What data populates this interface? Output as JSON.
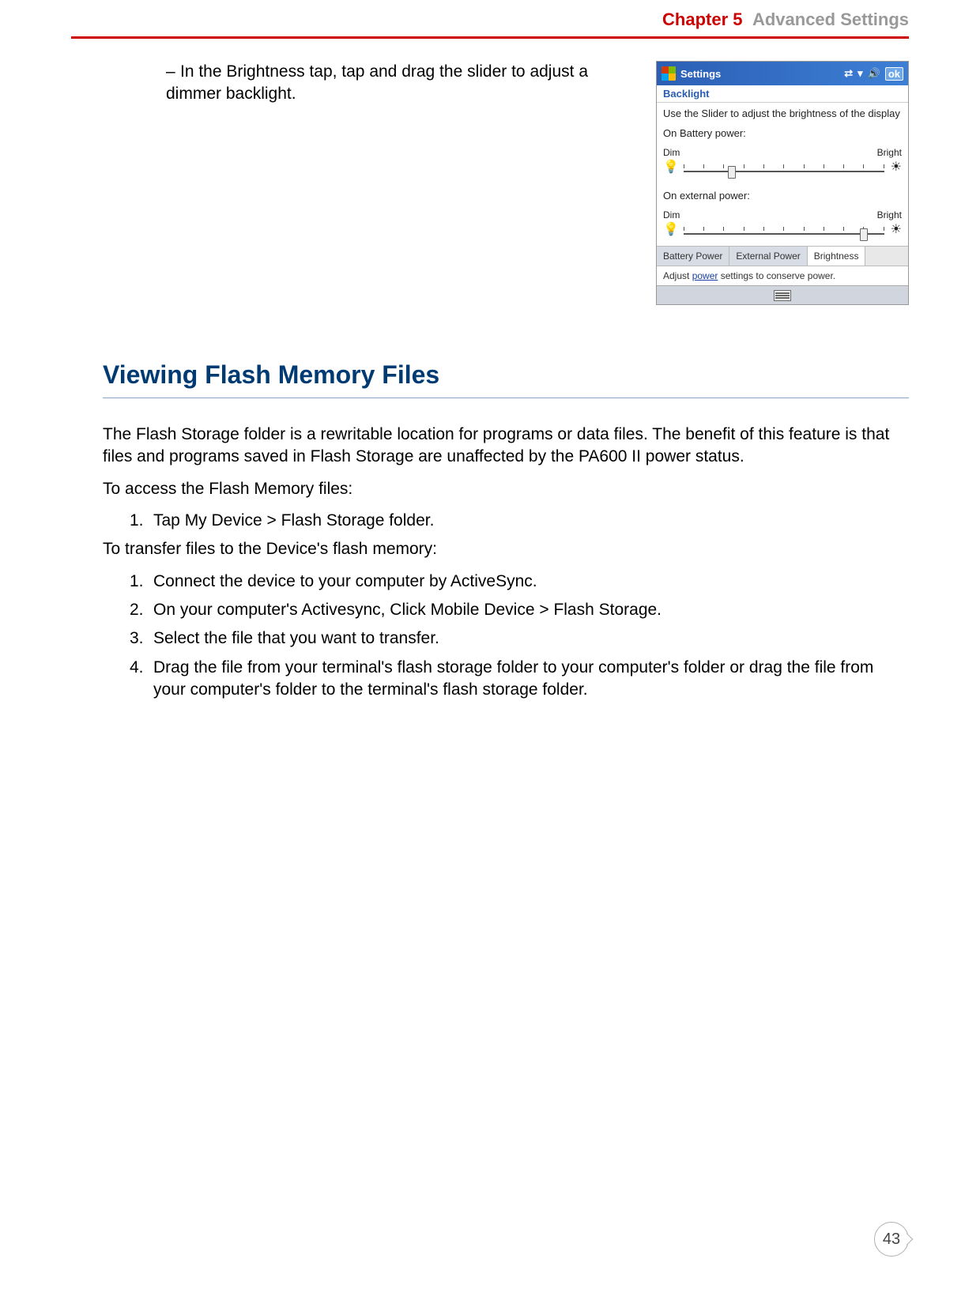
{
  "header": {
    "chapter_label": "Chapter 5",
    "chapter_title": "Advanced Settings"
  },
  "bullet": {
    "text": "In the Brightness tap, tap and drag the slider to adjust a dimmer backlight."
  },
  "screenshot": {
    "titlebar": {
      "title": "Settings",
      "ok": "ok"
    },
    "subhead": "Backlight",
    "instruction": "Use the Slider to adjust the brightness of the display",
    "battery_label": "On Battery power:",
    "external_label": "On external power:",
    "dim": "Dim",
    "bright": "Bright",
    "tabs": {
      "t1": "Battery Power",
      "t2": "External Power",
      "t3": "Brightness"
    },
    "footer_pre": "Adjust ",
    "footer_link": "power",
    "footer_post": " settings to conserve power.",
    "slider": {
      "battery_thumb_pct": 22,
      "external_thumb_pct": 88,
      "tick_count": 11
    },
    "colors": {
      "titlebar_start": "#2b5fb4",
      "titlebar_end": "#3d7fd6",
      "link": "#1a3fa0",
      "tab_bg": "#d8dce4"
    }
  },
  "section": {
    "heading": "Viewing Flash Memory Files",
    "para1": "The Flash Storage folder is a rewritable location for programs or data files. The benefit of this feature is that files and programs saved in Flash Storage are unaffected by the PA600 II power status.",
    "para2": "To access the Flash Memory files:",
    "list1": {
      "i1": "Tap My Device > Flash Storage folder."
    },
    "para3": "To transfer files to the Device's flash memory:",
    "list2": {
      "i1": "Connect the device to your computer by ActiveSync.",
      "i2": "On your computer's Activesync, Click Mobile Device > Flash Storage.",
      "i3": "Select the file that you want to transfer.",
      "i4": "Drag the file from your terminal's flash storage folder to your computer's folder or drag the file from your computer's folder to the terminal's flash storage folder."
    }
  },
  "page_number": "43",
  "colors": {
    "chapter_red": "#cc0000",
    "heading_blue": "#003a73",
    "underline_blue": "#8aa4c8"
  }
}
